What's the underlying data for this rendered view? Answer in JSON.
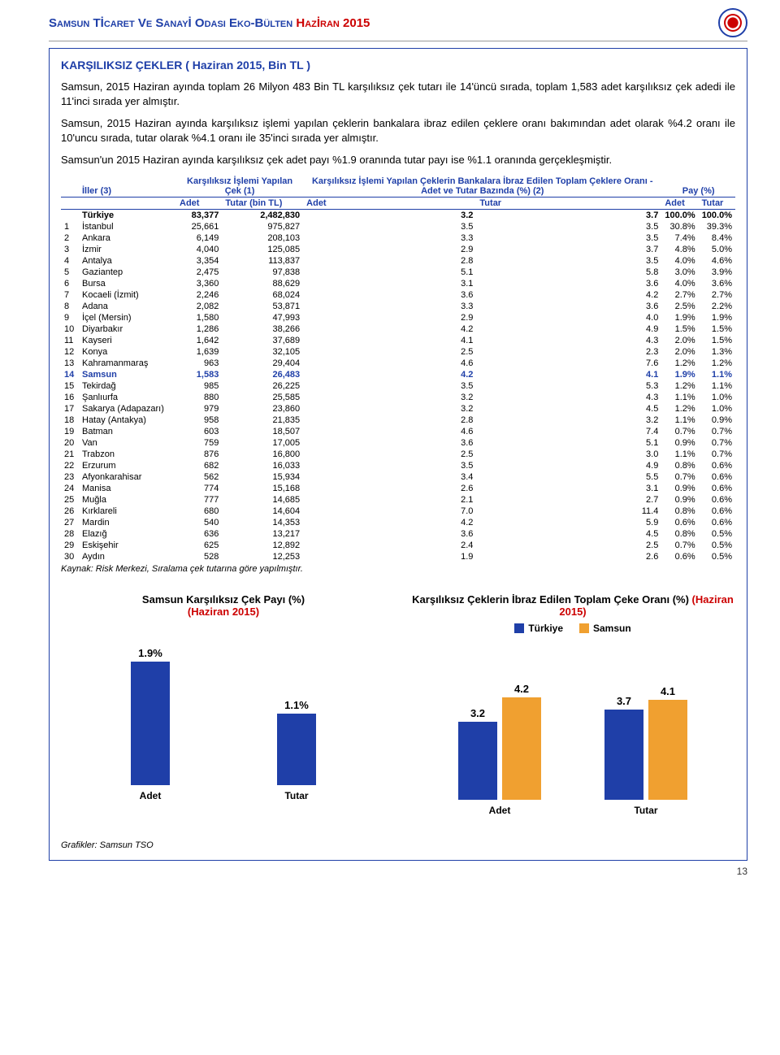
{
  "header": {
    "title_prefix": "Samsun Tİcaret Ve Sanayİ Odası Eko-Bülten ",
    "title_suffix": "Hazİran 2015"
  },
  "section_title": "KARŞILIKSIZ ÇEKLER ( Haziran 2015, Bin TL )",
  "paragraphs": {
    "p1": "Samsun, 2015 Haziran ayında toplam 26 Milyon 483 Bin TL karşılıksız çek tutarı ile 14'üncü sırada, toplam 1,583 adet karşılıksız çek adedi ile 11'inci sırada yer almıştır.",
    "p2": "Samsun, 2015 Haziran ayında karşılıksız işlemi yapılan çeklerin bankalara ibraz edilen çeklere oranı bakımından adet olarak %4.2 oranı ile 10'uncu sırada, tutar olarak  %4.1 oranı ile 35'inci sırada yer almıştır.",
    "p3": "Samsun'un 2015 Haziran ayında karşılıksız çek adet payı %1.9 oranında tutar payı ise %1.1 oranında gerçekleşmiştir."
  },
  "table": {
    "head": {
      "col1": "İller (3)",
      "col2": "Karşılıksız İşlemi Yapılan Çek (1)",
      "col3": "Karşılıksız İşlemi Yapılan Çeklerin Bankalara İbraz Edilen Toplam Çeklere Oranı - Adet ve Tutar Bazında (%) (2)",
      "col4": "Pay (%)",
      "sub_adet": "Adet",
      "sub_tutar_bin": "Tutar (bin TL)",
      "sub_tutar": "Tutar"
    },
    "rows": [
      {
        "rank": "",
        "il": "Türkiye",
        "adet": "83,377",
        "tutar": "2,482,830",
        "r_adet": "3.2",
        "r_tutar": "3.7",
        "p_adet": "100.0%",
        "p_tutar": "100.0%",
        "bold": true
      },
      {
        "rank": "1",
        "il": "İstanbul",
        "adet": "25,661",
        "tutar": "975,827",
        "r_adet": "3.5",
        "r_tutar": "3.5",
        "p_adet": "30.8%",
        "p_tutar": "39.3%"
      },
      {
        "rank": "2",
        "il": "Ankara",
        "adet": "6,149",
        "tutar": "208,103",
        "r_adet": "3.3",
        "r_tutar": "3.5",
        "p_adet": "7.4%",
        "p_tutar": "8.4%"
      },
      {
        "rank": "3",
        "il": "İzmir",
        "adet": "4,040",
        "tutar": "125,085",
        "r_adet": "2.9",
        "r_tutar": "3.7",
        "p_adet": "4.8%",
        "p_tutar": "5.0%"
      },
      {
        "rank": "4",
        "il": "Antalya",
        "adet": "3,354",
        "tutar": "113,837",
        "r_adet": "2.8",
        "r_tutar": "3.5",
        "p_adet": "4.0%",
        "p_tutar": "4.6%"
      },
      {
        "rank": "5",
        "il": "Gaziantep",
        "adet": "2,475",
        "tutar": "97,838",
        "r_adet": "5.1",
        "r_tutar": "5.8",
        "p_adet": "3.0%",
        "p_tutar": "3.9%"
      },
      {
        "rank": "6",
        "il": "Bursa",
        "adet": "3,360",
        "tutar": "88,629",
        "r_adet": "3.1",
        "r_tutar": "3.6",
        "p_adet": "4.0%",
        "p_tutar": "3.6%"
      },
      {
        "rank": "7",
        "il": "Kocaeli (İzmit)",
        "adet": "2,246",
        "tutar": "68,024",
        "r_adet": "3.6",
        "r_tutar": "4.2",
        "p_adet": "2.7%",
        "p_tutar": "2.7%"
      },
      {
        "rank": "8",
        "il": "Adana",
        "adet": "2,082",
        "tutar": "53,871",
        "r_adet": "3.3",
        "r_tutar": "3.6",
        "p_adet": "2.5%",
        "p_tutar": "2.2%"
      },
      {
        "rank": "9",
        "il": "İçel (Mersin)",
        "adet": "1,580",
        "tutar": "47,993",
        "r_adet": "2.9",
        "r_tutar": "4.0",
        "p_adet": "1.9%",
        "p_tutar": "1.9%"
      },
      {
        "rank": "10",
        "il": "Diyarbakır",
        "adet": "1,286",
        "tutar": "38,266",
        "r_adet": "4.2",
        "r_tutar": "4.9",
        "p_adet": "1.5%",
        "p_tutar": "1.5%"
      },
      {
        "rank": "11",
        "il": "Kayseri",
        "adet": "1,642",
        "tutar": "37,689",
        "r_adet": "4.1",
        "r_tutar": "4.3",
        "p_adet": "2.0%",
        "p_tutar": "1.5%"
      },
      {
        "rank": "12",
        "il": "Konya",
        "adet": "1,639",
        "tutar": "32,105",
        "r_adet": "2.5",
        "r_tutar": "2.3",
        "p_adet": "2.0%",
        "p_tutar": "1.3%"
      },
      {
        "rank": "13",
        "il": "Kahramanmaraş",
        "adet": "963",
        "tutar": "29,404",
        "r_adet": "4.6",
        "r_tutar": "7.6",
        "p_adet": "1.2%",
        "p_tutar": "1.2%"
      },
      {
        "rank": "14",
        "il": "Samsun",
        "adet": "1,583",
        "tutar": "26,483",
        "r_adet": "4.2",
        "r_tutar": "4.1",
        "p_adet": "1.9%",
        "p_tutar": "1.1%",
        "hl": true
      },
      {
        "rank": "15",
        "il": "Tekirdağ",
        "adet": "985",
        "tutar": "26,225",
        "r_adet": "3.5",
        "r_tutar": "5.3",
        "p_adet": "1.2%",
        "p_tutar": "1.1%"
      },
      {
        "rank": "16",
        "il": "Şanlıurfa",
        "adet": "880",
        "tutar": "25,585",
        "r_adet": "3.2",
        "r_tutar": "4.3",
        "p_adet": "1.1%",
        "p_tutar": "1.0%"
      },
      {
        "rank": "17",
        "il": "Sakarya (Adapazarı)",
        "adet": "979",
        "tutar": "23,860",
        "r_adet": "3.2",
        "r_tutar": "4.5",
        "p_adet": "1.2%",
        "p_tutar": "1.0%"
      },
      {
        "rank": "18",
        "il": "Hatay (Antakya)",
        "adet": "958",
        "tutar": "21,835",
        "r_adet": "2.8",
        "r_tutar": "3.2",
        "p_adet": "1.1%",
        "p_tutar": "0.9%"
      },
      {
        "rank": "19",
        "il": "Batman",
        "adet": "603",
        "tutar": "18,507",
        "r_adet": "4.6",
        "r_tutar": "7.4",
        "p_adet": "0.7%",
        "p_tutar": "0.7%"
      },
      {
        "rank": "20",
        "il": "Van",
        "adet": "759",
        "tutar": "17,005",
        "r_adet": "3.6",
        "r_tutar": "5.1",
        "p_adet": "0.9%",
        "p_tutar": "0.7%"
      },
      {
        "rank": "21",
        "il": "Trabzon",
        "adet": "876",
        "tutar": "16,800",
        "r_adet": "2.5",
        "r_tutar": "3.0",
        "p_adet": "1.1%",
        "p_tutar": "0.7%"
      },
      {
        "rank": "22",
        "il": "Erzurum",
        "adet": "682",
        "tutar": "16,033",
        "r_adet": "3.5",
        "r_tutar": "4.9",
        "p_adet": "0.8%",
        "p_tutar": "0.6%"
      },
      {
        "rank": "23",
        "il": "Afyonkarahisar",
        "adet": "562",
        "tutar": "15,934",
        "r_adet": "3.4",
        "r_tutar": "5.5",
        "p_adet": "0.7%",
        "p_tutar": "0.6%"
      },
      {
        "rank": "24",
        "il": "Manisa",
        "adet": "774",
        "tutar": "15,168",
        "r_adet": "2.6",
        "r_tutar": "3.1",
        "p_adet": "0.9%",
        "p_tutar": "0.6%"
      },
      {
        "rank": "25",
        "il": "Muğla",
        "adet": "777",
        "tutar": "14,685",
        "r_adet": "2.1",
        "r_tutar": "2.7",
        "p_adet": "0.9%",
        "p_tutar": "0.6%"
      },
      {
        "rank": "26",
        "il": "Kırklareli",
        "adet": "680",
        "tutar": "14,604",
        "r_adet": "7.0",
        "r_tutar": "11.4",
        "p_adet": "0.8%",
        "p_tutar": "0.6%"
      },
      {
        "rank": "27",
        "il": "Mardin",
        "adet": "540",
        "tutar": "14,353",
        "r_adet": "4.2",
        "r_tutar": "5.9",
        "p_adet": "0.6%",
        "p_tutar": "0.6%"
      },
      {
        "rank": "28",
        "il": "Elazığ",
        "adet": "636",
        "tutar": "13,217",
        "r_adet": "3.6",
        "r_tutar": "4.5",
        "p_adet": "0.8%",
        "p_tutar": "0.5%"
      },
      {
        "rank": "29",
        "il": "Eskişehir",
        "adet": "625",
        "tutar": "12,892",
        "r_adet": "2.4",
        "r_tutar": "2.5",
        "p_adet": "0.7%",
        "p_tutar": "0.5%"
      },
      {
        "rank": "30",
        "il": "Aydın",
        "adet": "528",
        "tutar": "12,253",
        "r_adet": "1.9",
        "r_tutar": "2.6",
        "p_adet": "0.6%",
        "p_tutar": "0.5%"
      }
    ],
    "footnote": "Kaynak: Risk Merkezi, Sıralama çek tutarına göre yapılmıştır."
  },
  "chart1": {
    "title_main": "Samsun Karşılıksız Çek Payı (%)",
    "title_sub": "(Haziran 2015)",
    "color": "#1f3fa8",
    "max": 2.0,
    "bars": [
      {
        "label": "Adet",
        "value": "1.9%",
        "h": 1.9
      },
      {
        "label": "Tutar",
        "value": "1.1%",
        "h": 1.1
      }
    ]
  },
  "chart2": {
    "title_main": "Karşılıksız Çeklerin İbraz Edilen Toplam Çeke Oranı (%) ",
    "title_sub": "(Haziran 2015)",
    "legend": [
      {
        "name": "Türkiye",
        "color": "#1f3fa8"
      },
      {
        "name": "Samsun",
        "color": "#f0a030"
      }
    ],
    "max": 5.0,
    "groups": [
      {
        "label": "Adet",
        "bars": [
          {
            "v": "3.2",
            "h": 3.2,
            "c": "#1f3fa8"
          },
          {
            "v": "4.2",
            "h": 4.2,
            "c": "#f0a030"
          }
        ]
      },
      {
        "label": "Tutar",
        "bars": [
          {
            "v": "3.7",
            "h": 3.7,
            "c": "#1f3fa8"
          },
          {
            "v": "4.1",
            "h": 4.1,
            "c": "#f0a030"
          }
        ]
      }
    ]
  },
  "graf_source": "Grafikler: Samsun TSO",
  "page_number": "13"
}
